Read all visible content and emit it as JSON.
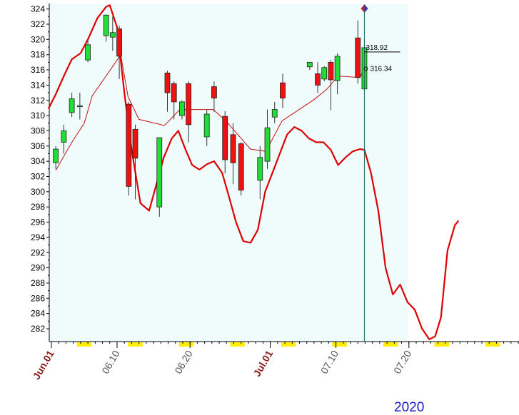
{
  "chart_data": {
    "type": "candlestick",
    "year_label": "2020",
    "y_ticks": [
      282,
      284,
      286,
      288,
      290,
      292,
      294,
      296,
      298,
      300,
      302,
      304,
      306,
      308,
      310,
      312,
      314,
      316,
      318,
      320,
      322,
      324
    ],
    "ylim": [
      280.5,
      325
    ],
    "x_labels": [
      {
        "text": "Jun.01",
        "day": 0,
        "highlight": true
      },
      {
        "text": "06.10",
        "day": 9,
        "highlight": false
      },
      {
        "text": "06.20",
        "day": 19,
        "highlight": false
      },
      {
        "text": "Jul.01",
        "day": 30,
        "highlight": true
      },
      {
        "text": "07.10",
        "day": 39,
        "highlight": false
      },
      {
        "text": "07.20",
        "day": 49,
        "highlight": false
      }
    ],
    "candles": [
      {
        "day": 0.6,
        "open": 303.8,
        "high": 306.0,
        "low": 303.0,
        "close": 305.6
      },
      {
        "day": 1.7,
        "open": 306.5,
        "high": 308.8,
        "low": 305.0,
        "close": 308.0
      },
      {
        "day": 2.8,
        "open": 310.4,
        "high": 313.0,
        "low": 309.8,
        "close": 312.2
      },
      {
        "day": 3.9,
        "open": 311.2,
        "high": 313.0,
        "low": 309.5,
        "close": 311.3
      },
      {
        "day": 5.0,
        "open": 317.3,
        "high": 320.0,
        "low": 317.0,
        "close": 319.3
      },
      {
        "day": 7.5,
        "open": 320.5,
        "high": 323.0,
        "low": 319.7,
        "close": 323.2
      },
      {
        "day": 8.4,
        "open": 320.3,
        "high": 323.0,
        "low": 318.5,
        "close": 320.9
      },
      {
        "day": 9.3,
        "open": 321.4,
        "high": 321.8,
        "low": 314.8,
        "close": 317.8
      },
      {
        "day": 10.6,
        "open": 311.5,
        "high": 311.8,
        "low": 299.5,
        "close": 300.7
      },
      {
        "day": 11.5,
        "open": 308.2,
        "high": 308.8,
        "low": 299.0,
        "close": 304.4
      },
      {
        "day": 14.8,
        "open": 298.0,
        "high": 307.0,
        "low": 296.7,
        "close": 307.1
      },
      {
        "day": 15.9,
        "open": 315.6,
        "high": 315.9,
        "low": 310.5,
        "close": 313.0
      },
      {
        "day": 16.8,
        "open": 314.2,
        "high": 314.5,
        "low": 309.5,
        "close": 311.8
      },
      {
        "day": 17.9,
        "open": 310.0,
        "high": 312.0,
        "low": 309.5,
        "close": 311.8
      },
      {
        "day": 18.8,
        "open": 314.2,
        "high": 314.5,
        "low": 306.5,
        "close": 308.8
      },
      {
        "day": 21.3,
        "open": 307.2,
        "high": 310.8,
        "low": 306.0,
        "close": 310.2
      },
      {
        "day": 22.3,
        "open": 313.8,
        "high": 314.5,
        "low": 310.5,
        "close": 312.3
      },
      {
        "day": 23.8,
        "open": 309.9,
        "high": 310.6,
        "low": 302.4,
        "close": 304.2
      },
      {
        "day": 24.9,
        "open": 307.5,
        "high": 309.0,
        "low": 301.0,
        "close": 303.8
      },
      {
        "day": 26.0,
        "open": 306.3,
        "high": 306.5,
        "low": 299.5,
        "close": 300.2
      },
      {
        "day": 28.6,
        "open": 301.5,
        "high": 306.0,
        "low": 299.0,
        "close": 304.5
      },
      {
        "day": 29.6,
        "open": 304.0,
        "high": 310.8,
        "low": 303.0,
        "close": 308.4
      },
      {
        "day": 30.6,
        "open": 309.8,
        "high": 311.8,
        "low": 309.0,
        "close": 310.8
      },
      {
        "day": 31.7,
        "open": 314.3,
        "high": 315.5,
        "low": 311.0,
        "close": 312.3
      },
      {
        "day": 35.4,
        "open": 316.4,
        "high": 317.0,
        "low": 316.0,
        "close": 317.0
      },
      {
        "day": 36.5,
        "open": 315.5,
        "high": 317.0,
        "low": 313.0,
        "close": 314.0
      },
      {
        "day": 37.4,
        "open": 314.8,
        "high": 316.5,
        "low": 314.5,
        "close": 316.3
      },
      {
        "day": 38.3,
        "open": 317.0,
        "high": 317.3,
        "low": 310.7,
        "close": 314.7
      },
      {
        "day": 39.2,
        "open": 314.6,
        "high": 318.2,
        "low": 312.8,
        "close": 317.8
      },
      {
        "day": 42.0,
        "open": 320.2,
        "high": 322.5,
        "low": 314.2,
        "close": 315.0
      },
      {
        "day": 42.9,
        "open": 313.5,
        "high": 320.0,
        "low": 313.2,
        "close": 318.92
      }
    ],
    "moving_average": {
      "points": [
        [
          0.6,
          302.8
        ],
        [
          2.8,
          306.5
        ],
        [
          4.5,
          309.0
        ],
        [
          5.6,
          312.6
        ],
        [
          8.0,
          315.9
        ],
        [
          9.5,
          318.0
        ],
        [
          10.5,
          312.5
        ],
        [
          12.0,
          309.5
        ],
        [
          15.5,
          308.7
        ],
        [
          17.6,
          310.8
        ],
        [
          20.0,
          310.8
        ],
        [
          22.2,
          310.8
        ],
        [
          24.0,
          309.2
        ],
        [
          27.3,
          305.6
        ],
        [
          29.4,
          305.3
        ],
        [
          31.6,
          309.3
        ],
        [
          36.0,
          312.1
        ],
        [
          37.8,
          313.5
        ],
        [
          39.3,
          315.2
        ],
        [
          42.3,
          315.0
        ],
        [
          42.9,
          316.34
        ]
      ]
    },
    "forecast_line": {
      "points": [
        [
          -0.4,
          310.9
        ],
        [
          0.6,
          312.8
        ],
        [
          1.8,
          315.4
        ],
        [
          2.8,
          317.4
        ],
        [
          4.0,
          318.2
        ],
        [
          5.0,
          320.0
        ],
        [
          6.3,
          322.8
        ],
        [
          7.5,
          324.3
        ],
        [
          8.0,
          324.5
        ],
        [
          9.0,
          321.6
        ],
        [
          10.0,
          313.0
        ],
        [
          11.0,
          305.5
        ],
        [
          12.2,
          298.5
        ],
        [
          13.4,
          297.5
        ],
        [
          14.4,
          301.0
        ],
        [
          15.4,
          304.5
        ],
        [
          16.5,
          307.0
        ],
        [
          17.4,
          308.0
        ],
        [
          18.4,
          305.5
        ],
        [
          19.3,
          303.5
        ],
        [
          20.3,
          302.9
        ],
        [
          21.3,
          303.6
        ],
        [
          22.3,
          304.0
        ],
        [
          23.4,
          302.5
        ],
        [
          24.3,
          299.5
        ],
        [
          25.3,
          296.0
        ],
        [
          26.3,
          293.5
        ],
        [
          27.3,
          293.3
        ],
        [
          28.3,
          295.0
        ],
        [
          29.3,
          300.0
        ],
        [
          30.3,
          302.5
        ],
        [
          31.3,
          305.0
        ],
        [
          32.3,
          307.5
        ],
        [
          33.3,
          308.5
        ],
        [
          34.3,
          308.0
        ],
        [
          35.3,
          307.0
        ],
        [
          36.3,
          306.5
        ],
        [
          37.3,
          306.5
        ],
        [
          38.3,
          305.5
        ],
        [
          39.3,
          303.5
        ],
        [
          40.3,
          304.5
        ],
        [
          41.3,
          305.3
        ],
        [
          42.3,
          305.6
        ],
        [
          42.9,
          305.5
        ],
        [
          43.8,
          302.5
        ],
        [
          44.8,
          297.5
        ],
        [
          45.8,
          290.0
        ],
        [
          46.8,
          286.5
        ],
        [
          47.8,
          287.8
        ],
        [
          48.8,
          285.5
        ],
        [
          49.8,
          284.5
        ],
        [
          50.8,
          282.0
        ],
        [
          51.8,
          280.6
        ],
        [
          52.6,
          281.0
        ],
        [
          53.4,
          283.5
        ],
        [
          54.3,
          292.3
        ],
        [
          55.3,
          295.6
        ],
        [
          55.8,
          296.2
        ]
      ]
    },
    "cursor": {
      "day": 42.9,
      "close_label": "318.92",
      "ma_label": "316.34"
    },
    "colors": {
      "up": "#22dd33",
      "down": "#ee1111",
      "ma": "#c41010",
      "forecast": "#dd0000",
      "plot_bg": "#f0fcfc",
      "cursor": "#1a6b5a",
      "axis_date": "#8b1a1a",
      "axis_tick": "#555555",
      "weekend": "#ffee00"
    }
  }
}
